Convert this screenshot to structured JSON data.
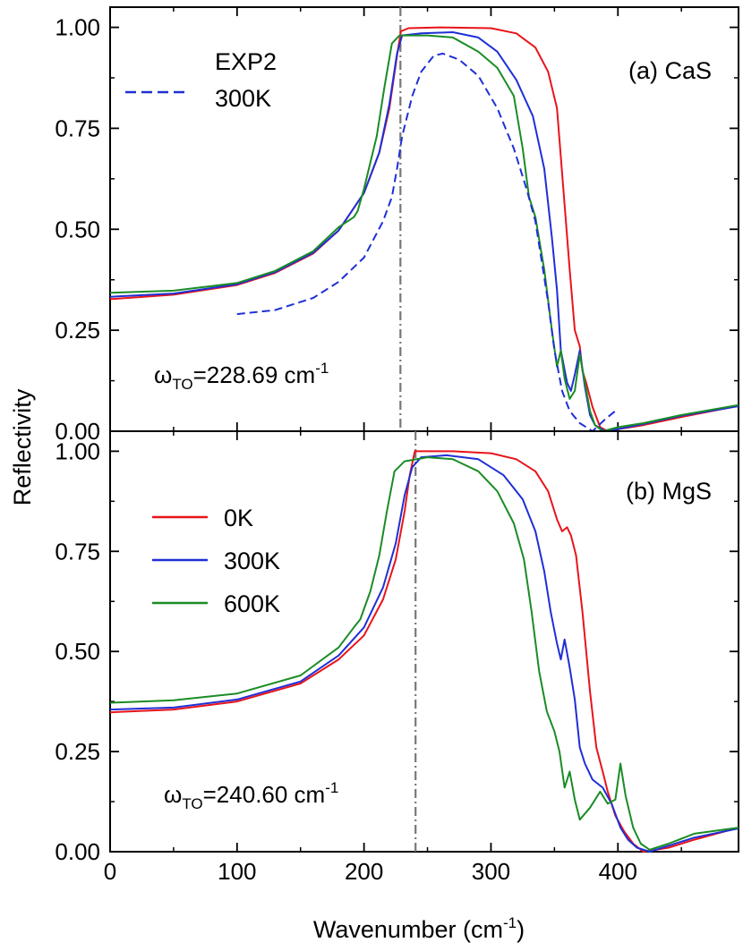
{
  "figure": {
    "xlabel_main": "Wavenumber (cm",
    "xlabel_sup": "-1",
    "xlabel_end": ")",
    "ylabel": "Reflectivity"
  },
  "chart_data": [
    {
      "type": "line",
      "panel_label": "(a) CaS",
      "xlim": [
        0,
        495
      ],
      "ylim": [
        0,
        1.05
      ],
      "xticks": [
        0,
        100,
        200,
        300,
        400
      ],
      "yticks": [
        0.0,
        0.25,
        0.5,
        0.75,
        1.0
      ],
      "ytick_labels": [
        "0.00",
        "0.25",
        "0.50",
        "0.75",
        "1.00"
      ],
      "xtick_labels": [
        "",
        "",
        "",
        "",
        ""
      ],
      "vline_x": 228.69,
      "annotation": {
        "omega": "ω",
        "sub": "TO",
        "value": "=228.69 cm",
        "sup": "-1"
      },
      "legend": {
        "position": "top-left",
        "entries": [
          {
            "line1": "EXP2",
            "line2": "300K",
            "color": "#1f2fd6",
            "dashed": true
          }
        ]
      },
      "series": [
        {
          "key": "0K",
          "color": "#e8141a",
          "points": [
            [
              0,
              0.327
            ],
            [
              50,
              0.338
            ],
            [
              100,
              0.362
            ],
            [
              130,
              0.392
            ],
            [
              160,
              0.44
            ],
            [
              180,
              0.497
            ],
            [
              200,
              0.59
            ],
            [
              212,
              0.69
            ],
            [
              220,
              0.8
            ],
            [
              226,
              0.93
            ],
            [
              229,
              0.99
            ],
            [
              235,
              0.998
            ],
            [
              260,
              1.0
            ],
            [
              300,
              0.998
            ],
            [
              320,
              0.985
            ],
            [
              335,
              0.95
            ],
            [
              345,
              0.89
            ],
            [
              352,
              0.8
            ],
            [
              357,
              0.6
            ],
            [
              362,
              0.4
            ],
            [
              366,
              0.25
            ],
            [
              370,
              0.21
            ],
            [
              372,
              0.15
            ],
            [
              375,
              0.12
            ],
            [
              380,
              0.06
            ],
            [
              386,
              0.01
            ],
            [
              392,
              0.0
            ],
            [
              400,
              0.005
            ],
            [
              420,
              0.015
            ],
            [
              450,
              0.035
            ],
            [
              495,
              0.063
            ]
          ]
        },
        {
          "key": "300K",
          "color": "#1f2fd6",
          "points": [
            [
              0,
              0.333
            ],
            [
              50,
              0.341
            ],
            [
              100,
              0.364
            ],
            [
              130,
              0.394
            ],
            [
              160,
              0.442
            ],
            [
              180,
              0.497
            ],
            [
              200,
              0.59
            ],
            [
              212,
              0.69
            ],
            [
              220,
              0.81
            ],
            [
              226,
              0.935
            ],
            [
              230,
              0.98
            ],
            [
              245,
              0.985
            ],
            [
              270,
              0.988
            ],
            [
              290,
              0.975
            ],
            [
              305,
              0.94
            ],
            [
              320,
              0.87
            ],
            [
              333,
              0.78
            ],
            [
              342,
              0.65
            ],
            [
              348,
              0.48
            ],
            [
              352,
              0.35
            ],
            [
              355,
              0.2
            ],
            [
              360,
              0.12
            ],
            [
              363,
              0.1
            ],
            [
              366,
              0.14
            ],
            [
              370,
              0.2
            ],
            [
              374,
              0.11
            ],
            [
              378,
              0.04
            ],
            [
              382,
              0.015
            ],
            [
              390,
              0.0
            ],
            [
              400,
              0.005
            ],
            [
              420,
              0.018
            ],
            [
              450,
              0.038
            ],
            [
              495,
              0.062
            ]
          ]
        },
        {
          "key": "600K",
          "color": "#1a8c25",
          "points": [
            [
              0,
              0.343
            ],
            [
              50,
              0.348
            ],
            [
              100,
              0.367
            ],
            [
              130,
              0.397
            ],
            [
              160,
              0.446
            ],
            [
              180,
              0.505
            ],
            [
              192,
              0.53
            ],
            [
              195,
              0.545
            ],
            [
              200,
              0.6
            ],
            [
              210,
              0.73
            ],
            [
              216,
              0.85
            ],
            [
              222,
              0.96
            ],
            [
              228,
              0.98
            ],
            [
              250,
              0.98
            ],
            [
              270,
              0.975
            ],
            [
              290,
              0.94
            ],
            [
              305,
              0.9
            ],
            [
              318,
              0.83
            ],
            [
              325,
              0.7
            ],
            [
              330,
              0.58
            ],
            [
              335,
              0.53
            ],
            [
              342,
              0.4
            ],
            [
              348,
              0.25
            ],
            [
              352,
              0.16
            ],
            [
              355,
              0.2
            ],
            [
              358,
              0.13
            ],
            [
              362,
              0.08
            ],
            [
              366,
              0.1
            ],
            [
              370,
              0.19
            ],
            [
              374,
              0.12
            ],
            [
              378,
              0.05
            ],
            [
              382,
              0.015
            ],
            [
              388,
              0.0
            ],
            [
              400,
              0.01
            ],
            [
              420,
              0.02
            ],
            [
              450,
              0.04
            ],
            [
              495,
              0.065
            ]
          ]
        },
        {
          "key": "EXP2",
          "color": "#1f2fd6",
          "dashed": true,
          "points": [
            [
              100,
              0.29
            ],
            [
              130,
              0.3
            ],
            [
              160,
              0.33
            ],
            [
              180,
              0.37
            ],
            [
              200,
              0.43
            ],
            [
              215,
              0.52
            ],
            [
              222,
              0.58
            ],
            [
              226,
              0.65
            ],
            [
              230,
              0.73
            ],
            [
              238,
              0.83
            ],
            [
              245,
              0.89
            ],
            [
              255,
              0.93
            ],
            [
              262,
              0.935
            ],
            [
              275,
              0.92
            ],
            [
              290,
              0.88
            ],
            [
              305,
              0.8
            ],
            [
              318,
              0.7
            ],
            [
              328,
              0.6
            ],
            [
              335,
              0.52
            ],
            [
              340,
              0.42
            ],
            [
              345,
              0.32
            ],
            [
              350,
              0.2
            ],
            [
              356,
              0.1
            ],
            [
              362,
              0.05
            ],
            [
              370,
              0.02
            ],
            [
              380,
              0.0
            ],
            [
              390,
              0.03
            ],
            [
              398,
              0.05
            ]
          ]
        }
      ]
    },
    {
      "type": "line",
      "panel_label": "(b) MgS",
      "xlim": [
        0,
        495
      ],
      "ylim": [
        0,
        1.05
      ],
      "xticks": [
        0,
        100,
        200,
        300,
        400
      ],
      "yticks": [
        0.0,
        0.25,
        0.5,
        0.75,
        1.0
      ],
      "ytick_labels": [
        "0.00",
        "0.25",
        "0.50",
        "0.75",
        "1.00"
      ],
      "xtick_labels": [
        "0",
        "100",
        "200",
        "300",
        "400"
      ],
      "vline_x": 240.6,
      "annotation": {
        "omega": "ω",
        "sub": "TO",
        "value": "=240.60 cm",
        "sup": "-1"
      },
      "legend": {
        "position": "middle-left",
        "entries": [
          {
            "label": "0K",
            "color": "#e8141a"
          },
          {
            "label": "300K",
            "color": "#1f2fd6"
          },
          {
            "label": "600K",
            "color": "#1a8c25"
          }
        ]
      },
      "series": [
        {
          "key": "0K",
          "color": "#e8141a",
          "points": [
            [
              0,
              0.348
            ],
            [
              50,
              0.355
            ],
            [
              100,
              0.375
            ],
            [
              150,
              0.42
            ],
            [
              180,
              0.48
            ],
            [
              200,
              0.54
            ],
            [
              215,
              0.63
            ],
            [
              225,
              0.73
            ],
            [
              232,
              0.85
            ],
            [
              236,
              0.94
            ],
            [
              240,
              1.0
            ],
            [
              270,
              1.0
            ],
            [
              300,
              0.995
            ],
            [
              320,
              0.98
            ],
            [
              335,
              0.95
            ],
            [
              345,
              0.9
            ],
            [
              352,
              0.83
            ],
            [
              356,
              0.8
            ],
            [
              360,
              0.81
            ],
            [
              363,
              0.79
            ],
            [
              367,
              0.74
            ],
            [
              372,
              0.6
            ],
            [
              378,
              0.4
            ],
            [
              383,
              0.26
            ],
            [
              388,
              0.2
            ],
            [
              392,
              0.15
            ],
            [
              398,
              0.09
            ],
            [
              405,
              0.05
            ],
            [
              412,
              0.02
            ],
            [
              420,
              0.0
            ],
            [
              440,
              0.01
            ],
            [
              460,
              0.03
            ],
            [
              495,
              0.06
            ]
          ]
        },
        {
          "key": "300K",
          "color": "#1f2fd6",
          "points": [
            [
              0,
              0.355
            ],
            [
              50,
              0.36
            ],
            [
              100,
              0.38
            ],
            [
              150,
              0.425
            ],
            [
              180,
              0.49
            ],
            [
              200,
              0.56
            ],
            [
              215,
              0.66
            ],
            [
              225,
              0.77
            ],
            [
              232,
              0.89
            ],
            [
              238,
              0.96
            ],
            [
              245,
              0.985
            ],
            [
              265,
              0.99
            ],
            [
              290,
              0.98
            ],
            [
              310,
              0.94
            ],
            [
              325,
              0.88
            ],
            [
              335,
              0.8
            ],
            [
              342,
              0.7
            ],
            [
              347,
              0.6
            ],
            [
              352,
              0.52
            ],
            [
              355,
              0.48
            ],
            [
              358,
              0.53
            ],
            [
              362,
              0.46
            ],
            [
              366,
              0.38
            ],
            [
              370,
              0.26
            ],
            [
              374,
              0.22
            ],
            [
              380,
              0.18
            ],
            [
              388,
              0.16
            ],
            [
              395,
              0.12
            ],
            [
              402,
              0.06
            ],
            [
              408,
              0.03
            ],
            [
              415,
              0.01
            ],
            [
              425,
              0.0
            ],
            [
              440,
              0.015
            ],
            [
              460,
              0.035
            ],
            [
              495,
              0.058
            ]
          ]
        },
        {
          "key": "600K",
          "color": "#1a8c25",
          "points": [
            [
              0,
              0.372
            ],
            [
              50,
              0.378
            ],
            [
              100,
              0.395
            ],
            [
              150,
              0.44
            ],
            [
              180,
              0.51
            ],
            [
              192,
              0.56
            ],
            [
              197,
              0.58
            ],
            [
              205,
              0.65
            ],
            [
              212,
              0.74
            ],
            [
              218,
              0.85
            ],
            [
              224,
              0.95
            ],
            [
              232,
              0.975
            ],
            [
              250,
              0.985
            ],
            [
              270,
              0.98
            ],
            [
              290,
              0.95
            ],
            [
              305,
              0.9
            ],
            [
              318,
              0.82
            ],
            [
              326,
              0.73
            ],
            [
              332,
              0.6
            ],
            [
              338,
              0.45
            ],
            [
              344,
              0.35
            ],
            [
              350,
              0.3
            ],
            [
              354,
              0.25
            ],
            [
              358,
              0.16
            ],
            [
              362,
              0.2
            ],
            [
              366,
              0.13
            ],
            [
              370,
              0.08
            ],
            [
              378,
              0.11
            ],
            [
              386,
              0.15
            ],
            [
              392,
              0.12
            ],
            [
              398,
              0.13
            ],
            [
              402,
              0.22
            ],
            [
              406,
              0.14
            ],
            [
              412,
              0.06
            ],
            [
              418,
              0.02
            ],
            [
              425,
              0.005
            ],
            [
              440,
              0.02
            ],
            [
              460,
              0.045
            ],
            [
              495,
              0.06
            ]
          ]
        }
      ]
    }
  ]
}
